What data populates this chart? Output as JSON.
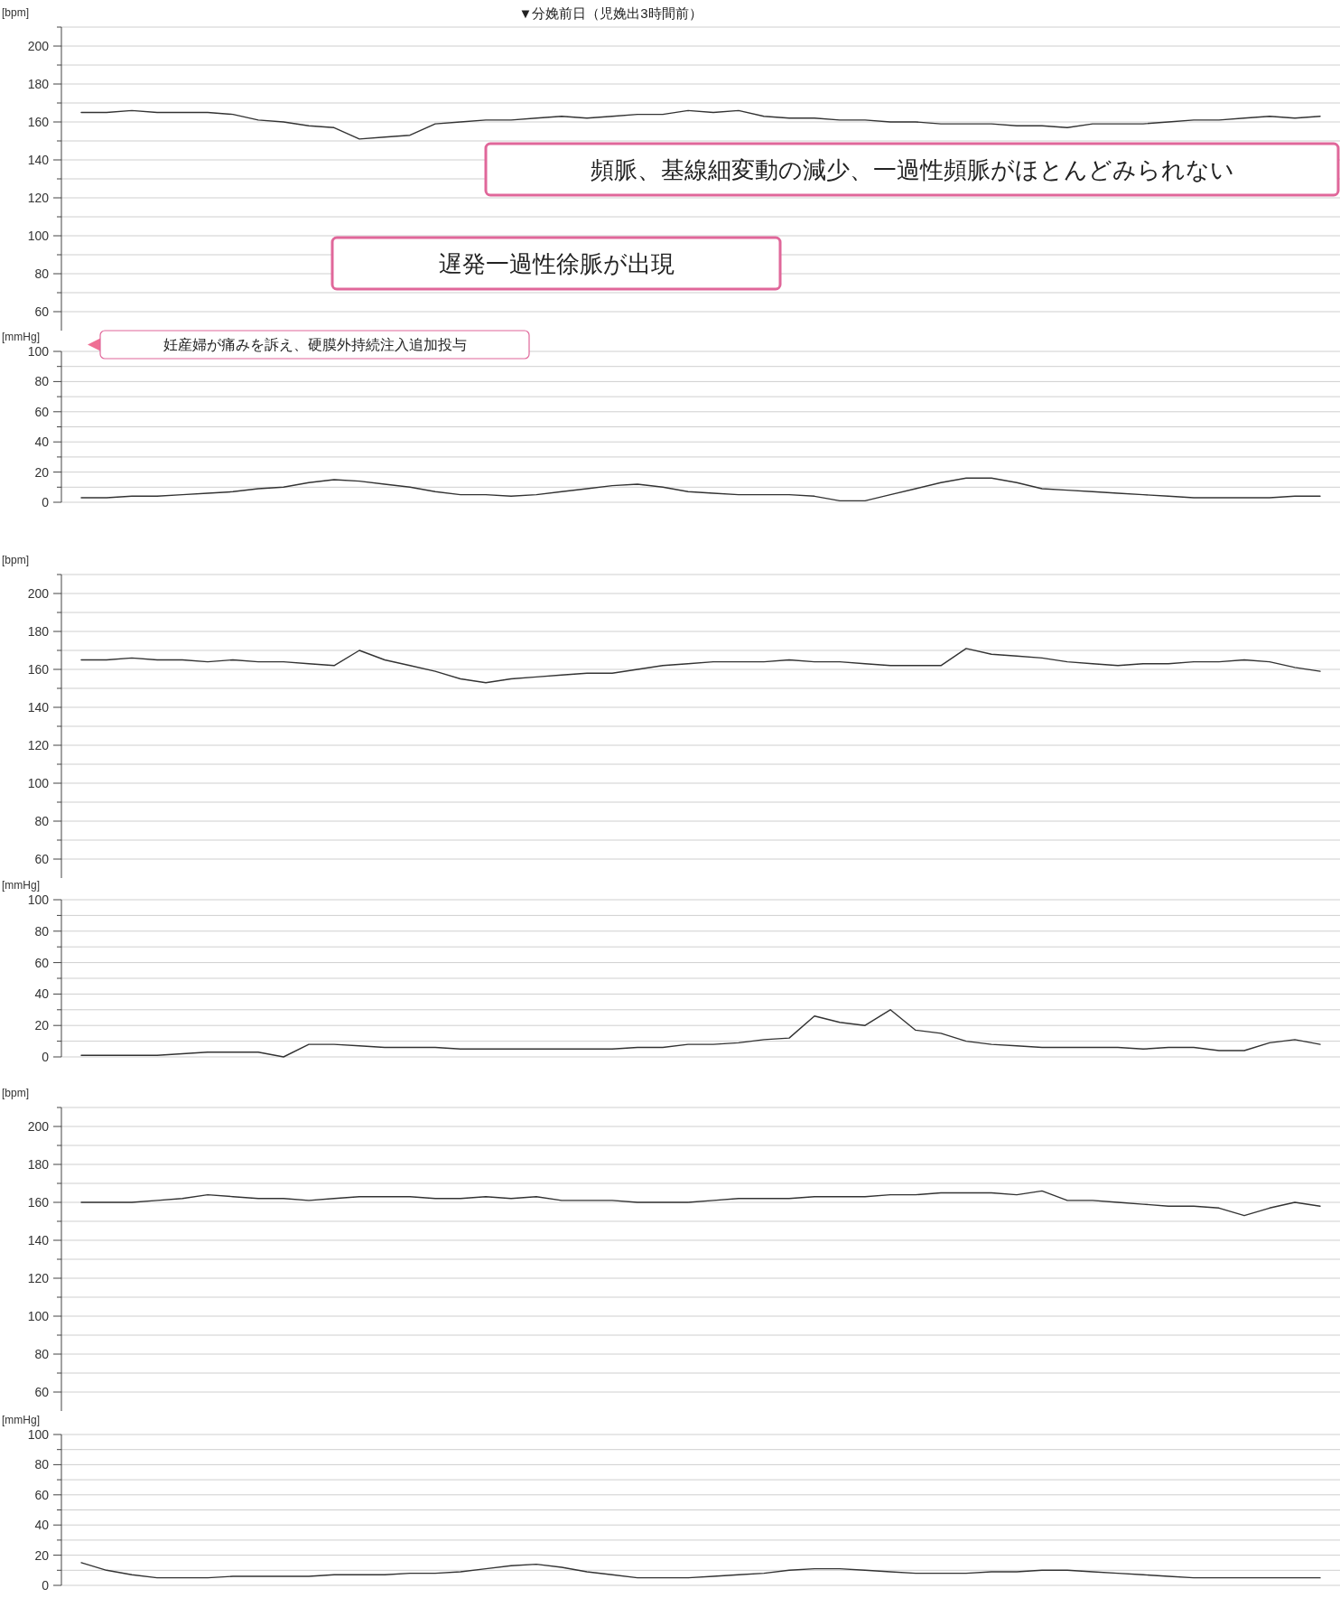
{
  "chart_data": [
    {
      "type": "line",
      "title": "▼分娩前日（児娩出3時間前）",
      "ylabel": "[bpm]",
      "ylim": [
        50,
        210
      ],
      "grid": "y",
      "yticks": [
        60,
        {
          "value": 70,
          "label": null
        },
        80,
        {
          "value": 90,
          "label": null
        },
        100,
        {
          "value": 110,
          "label": null
        },
        120,
        {
          "value": 130,
          "label": null
        },
        140,
        {
          "value": 150,
          "label": null
        },
        160,
        {
          "value": 170,
          "label": null
        },
        180,
        {
          "value": 190,
          "label": null
        },
        200,
        {
          "value": 210,
          "label": null
        }
      ],
      "categories": [
        null,
        null,
        null,
        null,
        null,
        null,
        null,
        null,
        null,
        null,
        null,
        null,
        null,
        null,
        null,
        null,
        null,
        null,
        null,
        null,
        null,
        null,
        null,
        null,
        null,
        null,
        null,
        null,
        null,
        null,
        null,
        null,
        null,
        null,
        null,
        null,
        null,
        null,
        null,
        null,
        null,
        null,
        null,
        null,
        null,
        null,
        null,
        null,
        null,
        null
      ],
      "series": [
        {
          "color": "#333333",
          "values": [
            165,
            165,
            166,
            165,
            165,
            165,
            164,
            161,
            160,
            158,
            157,
            151,
            152,
            153,
            159,
            160,
            161,
            161,
            162,
            163,
            162,
            163,
            164,
            164,
            166,
            165,
            166,
            163,
            162,
            162,
            161,
            161,
            160,
            160,
            159,
            159,
            159,
            158,
            158,
            157,
            159,
            159,
            159,
            160,
            161,
            161,
            162,
            163,
            162,
            163
          ]
        }
      ],
      "annotations": [
        "頻脈、基線細変動の減少、一過性頻脈がほとんどみられない",
        "遅発一過性徐脈が出現"
      ]
    },
    {
      "type": "line",
      "ylabel": "[mmHg]",
      "ylim": [
        0,
        100
      ],
      "grid": "y",
      "yticks": [
        0,
        {
          "value": 10,
          "label": null
        },
        20,
        {
          "value": 30,
          "label": null
        },
        40,
        {
          "value": 50,
          "label": null
        },
        60,
        {
          "value": 70,
          "label": null
        },
        80,
        {
          "value": 90,
          "label": null
        },
        100
      ],
      "categories": [
        null,
        null,
        null,
        null,
        null,
        null,
        null,
        null,
        null,
        null,
        null,
        null,
        null,
        null,
        null,
        null,
        null,
        null,
        null,
        null,
        null,
        null,
        null,
        null,
        null,
        null,
        null,
        null,
        null,
        null,
        null,
        null,
        null,
        null,
        null,
        null,
        null,
        null,
        null,
        null,
        null,
        null,
        null,
        null,
        null,
        null,
        null,
        null,
        null,
        null
      ],
      "series": [
        {
          "color": "#333333",
          "values": [
            3,
            3,
            4,
            4,
            5,
            6,
            7,
            9,
            10,
            13,
            15,
            14,
            12,
            10,
            7,
            5,
            5,
            4,
            5,
            7,
            9,
            11,
            12,
            10,
            7,
            6,
            5,
            5,
            5,
            4,
            1,
            1,
            5,
            9,
            13,
            16,
            16,
            13,
            9,
            8,
            7,
            6,
            5,
            4,
            3,
            3,
            3,
            3,
            4,
            4
          ]
        }
      ],
      "annotations": [
        "妊産婦が痛みを訴え、硬膜外持続注入追加投与"
      ]
    },
    {
      "type": "line",
      "ylabel": "[bpm]",
      "ylim": [
        50,
        210
      ],
      "grid": "y",
      "yticks": [
        60,
        {
          "value": 70,
          "label": null
        },
        80,
        {
          "value": 90,
          "label": null
        },
        100,
        {
          "value": 110,
          "label": null
        },
        120,
        {
          "value": 130,
          "label": null
        },
        140,
        {
          "value": 150,
          "label": null
        },
        160,
        {
          "value": 170,
          "label": null
        },
        180,
        {
          "value": 190,
          "label": null
        },
        200,
        {
          "value": 210,
          "label": null
        }
      ],
      "categories": [
        null,
        null,
        null,
        null,
        null,
        null,
        null,
        null,
        null,
        null,
        null,
        null,
        null,
        null,
        null,
        null,
        null,
        null,
        null,
        null,
        null,
        null,
        null,
        null,
        null,
        null,
        null,
        null,
        null,
        null,
        null,
        null,
        null,
        null,
        null,
        null,
        null,
        null,
        null,
        null,
        null,
        null,
        null,
        null,
        null,
        null,
        null,
        null,
        null,
        null
      ],
      "series": [
        {
          "color": "#333333",
          "values": [
            165,
            165,
            166,
            165,
            165,
            164,
            165,
            164,
            164,
            163,
            162,
            170,
            165,
            162,
            159,
            155,
            153,
            155,
            156,
            157,
            158,
            158,
            160,
            162,
            163,
            164,
            164,
            164,
            165,
            164,
            164,
            163,
            162,
            162,
            162,
            171,
            168,
            167,
            166,
            164,
            163,
            162,
            163,
            163,
            164,
            164,
            165,
            164,
            161,
            159
          ]
        }
      ]
    },
    {
      "type": "line",
      "ylabel": "[mmHg]",
      "ylim": [
        0,
        100
      ],
      "grid": "y",
      "yticks": [
        0,
        {
          "value": 10,
          "label": null
        },
        20,
        {
          "value": 30,
          "label": null
        },
        40,
        {
          "value": 50,
          "label": null
        },
        60,
        {
          "value": 70,
          "label": null
        },
        80,
        {
          "value": 90,
          "label": null
        },
        100
      ],
      "categories": [
        null,
        null,
        null,
        null,
        null,
        null,
        null,
        null,
        null,
        null,
        null,
        null,
        null,
        null,
        null,
        null,
        null,
        null,
        null,
        null,
        null,
        null,
        null,
        null,
        null,
        null,
        null,
        null,
        null,
        null,
        null,
        null,
        null,
        null,
        null,
        null,
        null,
        null,
        null,
        null,
        null,
        null,
        null,
        null,
        null,
        null,
        null,
        null,
        null,
        null
      ],
      "series": [
        {
          "color": "#333333",
          "values": [
            1,
            1,
            1,
            1,
            2,
            3,
            3,
            3,
            0,
            8,
            8,
            7,
            6,
            6,
            6,
            5,
            5,
            5,
            5,
            5,
            5,
            5,
            6,
            6,
            8,
            8,
            9,
            11,
            12,
            26,
            22,
            20,
            30,
            17,
            15,
            10,
            8,
            7,
            6,
            6,
            6,
            6,
            5,
            6,
            6,
            4,
            4,
            9,
            11,
            8
          ]
        }
      ]
    },
    {
      "type": "line",
      "ylabel": "[bpm]",
      "ylim": [
        50,
        210
      ],
      "grid": "y",
      "yticks": [
        60,
        {
          "value": 70,
          "label": null
        },
        80,
        {
          "value": 90,
          "label": null
        },
        100,
        {
          "value": 110,
          "label": null
        },
        120,
        {
          "value": 130,
          "label": null
        },
        140,
        {
          "value": 150,
          "label": null
        },
        160,
        {
          "value": 170,
          "label": null
        },
        180,
        {
          "value": 190,
          "label": null
        },
        200,
        {
          "value": 210,
          "label": null
        }
      ],
      "categories": [
        null,
        null,
        null,
        null,
        null,
        null,
        null,
        null,
        null,
        null,
        null,
        null,
        null,
        null,
        null,
        null,
        null,
        null,
        null,
        null,
        null,
        null,
        null,
        null,
        null,
        null,
        null,
        null,
        null,
        null,
        null,
        null,
        null,
        null,
        null,
        null,
        null,
        null,
        null,
        null,
        null,
        null,
        null,
        null,
        null,
        null,
        null,
        null,
        null,
        null
      ],
      "series": [
        {
          "color": "#333333",
          "values": [
            160,
            160,
            160,
            161,
            162,
            164,
            163,
            162,
            162,
            161,
            162,
            163,
            163,
            163,
            162,
            162,
            163,
            162,
            163,
            161,
            161,
            161,
            160,
            160,
            160,
            161,
            162,
            162,
            162,
            163,
            163,
            163,
            164,
            164,
            165,
            165,
            165,
            164,
            166,
            161,
            161,
            160,
            159,
            158,
            158,
            157,
            153,
            157,
            160,
            158
          ]
        }
      ]
    },
    {
      "type": "line",
      "ylabel": "[mmHg]",
      "ylim": [
        0,
        100
      ],
      "grid": "y",
      "yticks": [
        0,
        {
          "value": 10,
          "label": null
        },
        20,
        {
          "value": 30,
          "label": null
        },
        40,
        {
          "value": 50,
          "label": null
        },
        60,
        {
          "value": 70,
          "label": null
        },
        80,
        {
          "value": 90,
          "label": null
        },
        100
      ],
      "categories": [
        null,
        null,
        null,
        null,
        null,
        null,
        null,
        null,
        null,
        null,
        null,
        null,
        null,
        null,
        null,
        null,
        null,
        null,
        null,
        null,
        null,
        null,
        null,
        null,
        null,
        null,
        null,
        null,
        null,
        null,
        null,
        null,
        null,
        null,
        null,
        null,
        null,
        null,
        null,
        null,
        null,
        null,
        null,
        null,
        null,
        null,
        null,
        null,
        null,
        null
      ],
      "series": [
        {
          "color": "#333333",
          "values": [
            15,
            10,
            7,
            5,
            5,
            5,
            6,
            6,
            6,
            6,
            7,
            7,
            7,
            8,
            8,
            9,
            11,
            13,
            14,
            12,
            9,
            7,
            5,
            5,
            5,
            6,
            7,
            8,
            10,
            11,
            11,
            10,
            9,
            8,
            8,
            8,
            9,
            9,
            10,
            10,
            9,
            8,
            7,
            6,
            5,
            5,
            5,
            5,
            5,
            5
          ]
        }
      ]
    }
  ]
}
